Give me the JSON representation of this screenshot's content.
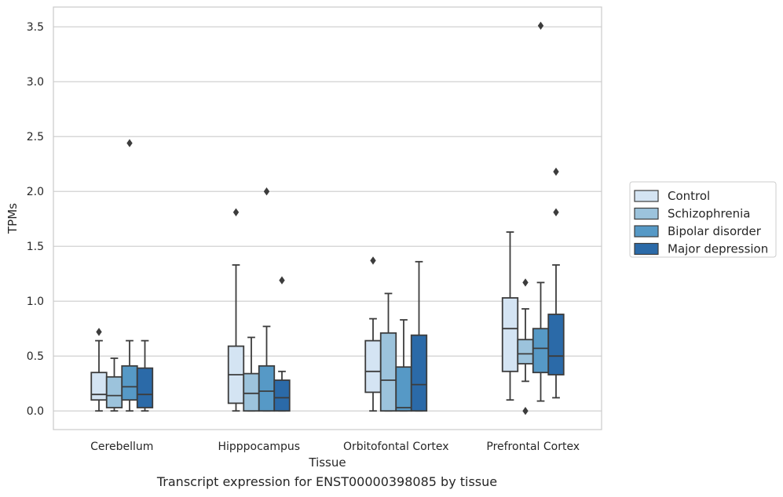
{
  "caption": "Transcript expression for ENST00000398085 by tissue",
  "chart_data": {
    "type": "box",
    "xlabel": "Tissue",
    "ylabel": "TPMs",
    "ylim": [
      -0.17,
      3.68
    ],
    "yticks": [
      0.0,
      0.5,
      1.0,
      1.5,
      2.0,
      2.5,
      3.0,
      3.5
    ],
    "ytick_labels": [
      "0.0",
      "0.5",
      "1.0",
      "1.5",
      "2.0",
      "2.5",
      "3.0",
      "3.5"
    ],
    "grid": "horizontal",
    "legend_position": "right",
    "categories": [
      "Cerebellum",
      "Hipppocampus",
      "Orbitofontal Cortex",
      "Prefrontal Cortex"
    ],
    "series": [
      {
        "name": "Control",
        "color": "#d4e4f3",
        "boxes": [
          {
            "whislo": 0.0,
            "q1": 0.1,
            "median": 0.15,
            "q3": 0.35,
            "whishi": 0.64,
            "fliers": [
              0.72
            ]
          },
          {
            "whislo": 0.0,
            "q1": 0.07,
            "median": 0.33,
            "q3": 0.59,
            "whishi": 1.33,
            "fliers": [
              1.81
            ]
          },
          {
            "whislo": 0.0,
            "q1": 0.17,
            "median": 0.36,
            "q3": 0.64,
            "whishi": 0.84,
            "fliers": [
              1.37
            ]
          },
          {
            "whislo": 0.1,
            "q1": 0.36,
            "median": 0.75,
            "q3": 1.03,
            "whishi": 1.63,
            "fliers": []
          }
        ]
      },
      {
        "name": "Schizophrenia",
        "color": "#9cc3dc",
        "boxes": [
          {
            "whislo": 0.0,
            "q1": 0.03,
            "median": 0.14,
            "q3": 0.31,
            "whishi": 0.48,
            "fliers": []
          },
          {
            "whislo": 0.0,
            "q1": 0.0,
            "median": 0.16,
            "q3": 0.34,
            "whishi": 0.67,
            "fliers": []
          },
          {
            "whislo": 0.0,
            "q1": 0.0,
            "median": 0.28,
            "q3": 0.71,
            "whishi": 1.07,
            "fliers": []
          },
          {
            "whislo": 0.27,
            "q1": 0.43,
            "median": 0.52,
            "q3": 0.65,
            "whishi": 0.93,
            "fliers": [
              0.0,
              1.17
            ]
          }
        ]
      },
      {
        "name": "Bipolar disorder",
        "color": "#5699c6",
        "boxes": [
          {
            "whislo": 0.0,
            "q1": 0.1,
            "median": 0.22,
            "q3": 0.41,
            "whishi": 0.64,
            "fliers": [
              2.44
            ]
          },
          {
            "whislo": 0.0,
            "q1": 0.0,
            "median": 0.18,
            "q3": 0.41,
            "whishi": 0.77,
            "fliers": [
              2.0
            ]
          },
          {
            "whislo": 0.0,
            "q1": 0.0,
            "median": 0.03,
            "q3": 0.4,
            "whishi": 0.83,
            "fliers": []
          },
          {
            "whislo": 0.09,
            "q1": 0.35,
            "median": 0.57,
            "q3": 0.75,
            "whishi": 1.17,
            "fliers": [
              3.51
            ]
          }
        ]
      },
      {
        "name": "Major depression",
        "color": "#2b6aa8",
        "boxes": [
          {
            "whislo": 0.0,
            "q1": 0.03,
            "median": 0.15,
            "q3": 0.39,
            "whishi": 0.64,
            "fliers": []
          },
          {
            "whislo": 0.0,
            "q1": 0.0,
            "median": 0.12,
            "q3": 0.28,
            "whishi": 0.36,
            "fliers": [
              1.19
            ]
          },
          {
            "whislo": 0.0,
            "q1": 0.0,
            "median": 0.24,
            "q3": 0.69,
            "whishi": 1.36,
            "fliers": []
          },
          {
            "whislo": 0.12,
            "q1": 0.33,
            "median": 0.5,
            "q3": 0.88,
            "whishi": 1.33,
            "fliers": [
              1.81,
              2.18
            ]
          }
        ]
      }
    ]
  }
}
